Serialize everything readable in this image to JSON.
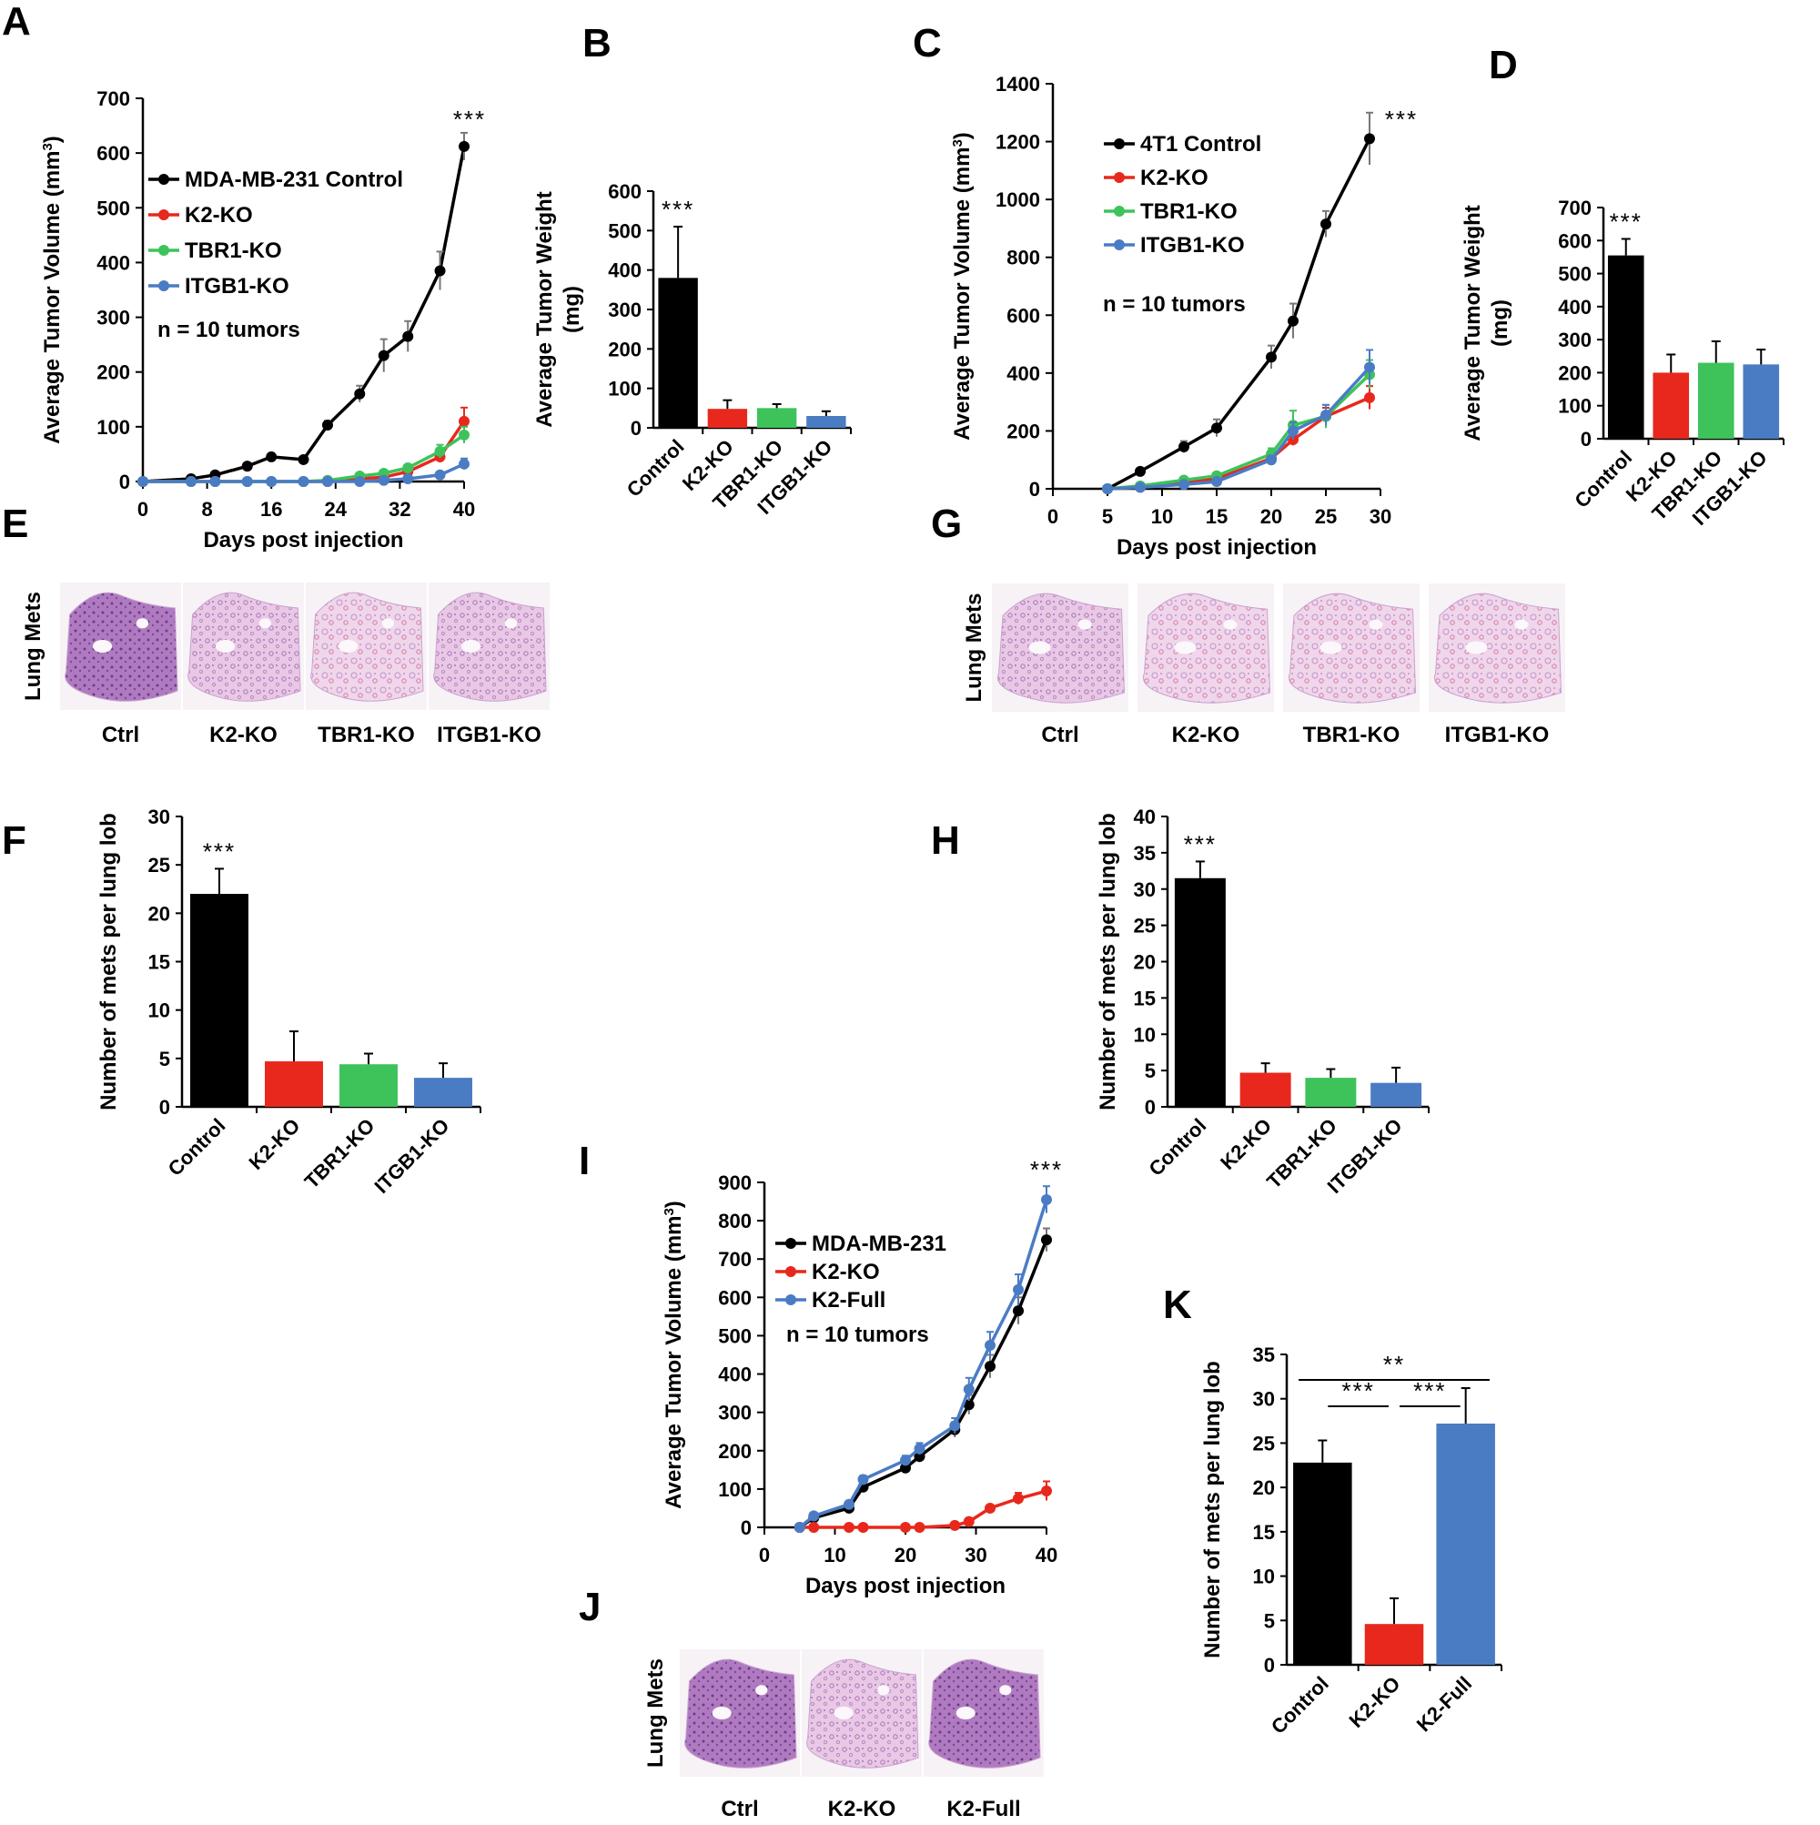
{
  "colors": {
    "Control": "#000000",
    "K2-KO": "#e8281c",
    "TBR1-KO": "#3dc35a",
    "ITGB1-KO": "#4a7cc4",
    "K2-Full": "#4a7cc4"
  },
  "panel_letters": [
    "A",
    "B",
    "C",
    "D",
    "E",
    "F",
    "G",
    "H",
    "I",
    "J",
    "K"
  ],
  "chart_data": [
    {
      "panel": "A",
      "type": "line",
      "xlabel": "Days post injection",
      "ylabel": "Average Tumor Volume (mm3)",
      "xlim": [
        0,
        40
      ],
      "ylim": [
        0,
        700
      ],
      "xticks": [
        0,
        8,
        16,
        24,
        32,
        40
      ],
      "yticks": [
        0,
        100,
        200,
        300,
        400,
        500,
        600,
        700
      ],
      "annotation": "n = 10 tumors",
      "significance": "***",
      "series": [
        {
          "name": "MDA-MB-231 Control",
          "group": "Control",
          "x": [
            0,
            6,
            9,
            13,
            16,
            20,
            23,
            27,
            30,
            33,
            37,
            40
          ],
          "y": [
            0,
            5,
            12,
            28,
            45,
            40,
            103,
            160,
            230,
            265,
            385,
            612
          ],
          "err": [
            0,
            2,
            3,
            4,
            4,
            5,
            8,
            15,
            30,
            28,
            35,
            25
          ]
        },
        {
          "name": "K2-KO",
          "group": "K2-KO",
          "x": [
            0,
            6,
            9,
            13,
            16,
            20,
            23,
            27,
            30,
            33,
            37,
            40
          ],
          "y": [
            0,
            0,
            0,
            0,
            0,
            0,
            0,
            5,
            8,
            18,
            45,
            110
          ],
          "err": [
            0,
            0,
            0,
            0,
            0,
            0,
            0,
            3,
            4,
            6,
            10,
            25
          ]
        },
        {
          "name": "TBR1-KO",
          "group": "TBR1-KO",
          "x": [
            0,
            6,
            9,
            13,
            16,
            20,
            23,
            27,
            30,
            33,
            37,
            40
          ],
          "y": [
            0,
            0,
            0,
            0,
            0,
            0,
            2,
            10,
            15,
            25,
            55,
            85
          ],
          "err": [
            0,
            0,
            0,
            0,
            0,
            0,
            2,
            4,
            5,
            6,
            12,
            15
          ]
        },
        {
          "name": "ITGB1-KO",
          "group": "ITGB1-KO",
          "x": [
            0,
            6,
            9,
            13,
            16,
            20,
            23,
            27,
            30,
            33,
            37,
            40
          ],
          "y": [
            0,
            0,
            0,
            0,
            0,
            0,
            0,
            0,
            2,
            5,
            12,
            32
          ],
          "err": [
            0,
            0,
            0,
            0,
            0,
            0,
            0,
            0,
            1,
            2,
            5,
            10
          ]
        }
      ]
    },
    {
      "panel": "B",
      "type": "bar",
      "ylabel": "Average Tumor Weight (mg)",
      "ylim": [
        0,
        600
      ],
      "yticks": [
        0,
        100,
        200,
        300,
        400,
        500,
        600
      ],
      "categories": [
        "Control",
        "K2-KO",
        "TBR1-KO",
        "ITGB1-KO"
      ],
      "values": [
        380,
        48,
        50,
        30
      ],
      "err": [
        130,
        22,
        10,
        12
      ],
      "significance": "***"
    },
    {
      "panel": "C",
      "type": "line",
      "xlabel": "Days post injection",
      "ylabel": "Average Tumor Volume (mm3)",
      "xlim": [
        0,
        30
      ],
      "ylim": [
        0,
        1400
      ],
      "xticks": [
        0,
        5,
        10,
        15,
        20,
        25,
        30
      ],
      "yticks": [
        0,
        200,
        400,
        600,
        800,
        1000,
        1200,
        1400
      ],
      "annotation": "n = 10 tumors",
      "significance": "***",
      "series": [
        {
          "name": "4T1 Control",
          "group": "Control",
          "x": [
            5,
            8,
            12,
            15,
            20,
            22,
            25,
            29
          ],
          "y": [
            0,
            60,
            145,
            210,
            455,
            580,
            915,
            1210
          ],
          "err": [
            0,
            10,
            20,
            30,
            40,
            60,
            45,
            90
          ]
        },
        {
          "name": "K2-KO",
          "group": "K2-KO",
          "x": [
            5,
            8,
            12,
            15,
            20,
            22,
            25,
            29
          ],
          "y": [
            0,
            5,
            20,
            35,
            105,
            170,
            250,
            315
          ],
          "err": [
            0,
            3,
            5,
            8,
            15,
            20,
            30,
            40
          ]
        },
        {
          "name": "TBR1-KO",
          "group": "TBR1-KO",
          "x": [
            5,
            8,
            12,
            15,
            20,
            22,
            25,
            29
          ],
          "y": [
            0,
            10,
            30,
            45,
            120,
            220,
            250,
            395
          ],
          "err": [
            0,
            4,
            8,
            10,
            20,
            50,
            40,
            50
          ]
        },
        {
          "name": "ITGB1-KO",
          "group": "ITGB1-KO",
          "x": [
            5,
            8,
            12,
            15,
            20,
            22,
            25,
            29
          ],
          "y": [
            0,
            5,
            15,
            25,
            100,
            200,
            255,
            420
          ],
          "err": [
            0,
            3,
            5,
            8,
            15,
            30,
            35,
            60
          ]
        }
      ]
    },
    {
      "panel": "D",
      "type": "bar",
      "ylabel": "Average Tumor Weight (mg)",
      "ylim": [
        0,
        700
      ],
      "yticks": [
        0,
        100,
        200,
        300,
        400,
        500,
        600,
        700
      ],
      "categories": [
        "Control",
        "K2-KO",
        "TBR1-KO",
        "ITGB1-KO"
      ],
      "values": [
        555,
        200,
        230,
        225
      ],
      "err": [
        50,
        55,
        65,
        45
      ],
      "significance": "***"
    },
    {
      "panel": "F",
      "type": "bar",
      "ylabel": "Number of mets per lung lob",
      "ylim": [
        0,
        30
      ],
      "yticks": [
        0,
        5,
        10,
        15,
        20,
        25,
        30
      ],
      "categories": [
        "Control",
        "K2-KO",
        "TBR1-KO",
        "ITGB1-KO"
      ],
      "values": [
        22,
        4.7,
        4.4,
        3
      ],
      "err": [
        2.6,
        3.1,
        1.1,
        1.5
      ],
      "significance": "***"
    },
    {
      "panel": "H",
      "type": "bar",
      "ylabel": "Number of mets per lung lob",
      "ylim": [
        0,
        40
      ],
      "yticks": [
        0,
        5,
        10,
        15,
        20,
        25,
        30,
        35,
        40
      ],
      "categories": [
        "Control",
        "K2-KO",
        "TBR1-KO",
        "ITGB1-KO"
      ],
      "values": [
        31.5,
        4.7,
        4,
        3.3
      ],
      "err": [
        2.3,
        1.3,
        1.2,
        2.1
      ],
      "significance": "***"
    },
    {
      "panel": "I",
      "type": "line",
      "xlabel": "Days post injection",
      "ylabel": "Average Tumor Volume (mm3)",
      "xlim": [
        0,
        40
      ],
      "ylim": [
        0,
        900
      ],
      "xticks": [
        0,
        10,
        20,
        30,
        40
      ],
      "yticks": [
        0,
        100,
        200,
        300,
        400,
        500,
        600,
        700,
        800,
        900
      ],
      "annotation": "n = 10 tumors",
      "significance": "***",
      "series": [
        {
          "name": "MDA-MB-231",
          "group": "Control",
          "x": [
            5,
            7,
            12,
            14,
            20,
            22,
            27,
            29,
            32,
            36,
            40
          ],
          "y": [
            0,
            25,
            50,
            105,
            155,
            185,
            255,
            320,
            420,
            565,
            750
          ],
          "err": [
            0,
            5,
            8,
            10,
            12,
            15,
            20,
            25,
            30,
            35,
            30
          ]
        },
        {
          "name": "K2-KO",
          "group": "K2-KO",
          "x": [
            5,
            7,
            12,
            14,
            20,
            22,
            27,
            29,
            32,
            36,
            40
          ],
          "y": [
            0,
            0,
            0,
            0,
            0,
            0,
            5,
            15,
            50,
            75,
            95
          ],
          "err": [
            0,
            0,
            0,
            0,
            0,
            0,
            3,
            5,
            8,
            15,
            25
          ]
        },
        {
          "name": "K2-Full",
          "group": "K2-Full",
          "x": [
            5,
            7,
            12,
            14,
            20,
            22,
            27,
            29,
            32,
            36,
            40
          ],
          "y": [
            0,
            30,
            60,
            125,
            175,
            205,
            265,
            360,
            475,
            620,
            855
          ],
          "err": [
            0,
            5,
            8,
            10,
            12,
            15,
            20,
            30,
            35,
            40,
            35
          ]
        }
      ]
    },
    {
      "panel": "K",
      "type": "bar",
      "ylabel": "Number of mets per lung lob",
      "ylim": [
        0,
        35
      ],
      "yticks": [
        0,
        5,
        10,
        15,
        20,
        25,
        30,
        35
      ],
      "categories": [
        "Control",
        "K2-KO",
        "K2-Full"
      ],
      "values": [
        22.8,
        4.6,
        27.2
      ],
      "err": [
        2.5,
        2.9,
        4
      ],
      "comparisons": [
        {
          "from": "Control",
          "to": "K2-KO",
          "label": "***"
        },
        {
          "from": "K2-KO",
          "to": "K2-Full",
          "label": "***"
        },
        {
          "from": "Control",
          "to": "K2-Full",
          "label": "**"
        }
      ]
    }
  ],
  "histology": [
    {
      "panel": "E",
      "row_label": "Lung Mets",
      "captions": [
        "Ctrl",
        "K2-KO",
        "TBR1-KO",
        "ITGB1-KO"
      ]
    },
    {
      "panel": "G",
      "row_label": "Lung Mets",
      "captions": [
        "Ctrl",
        "K2-KO",
        "TBR1-KO",
        "ITGB1-KO"
      ]
    },
    {
      "panel": "J",
      "row_label": "Lung Mets",
      "captions": [
        "Ctrl",
        "K2-KO",
        "K2-Full"
      ]
    }
  ]
}
